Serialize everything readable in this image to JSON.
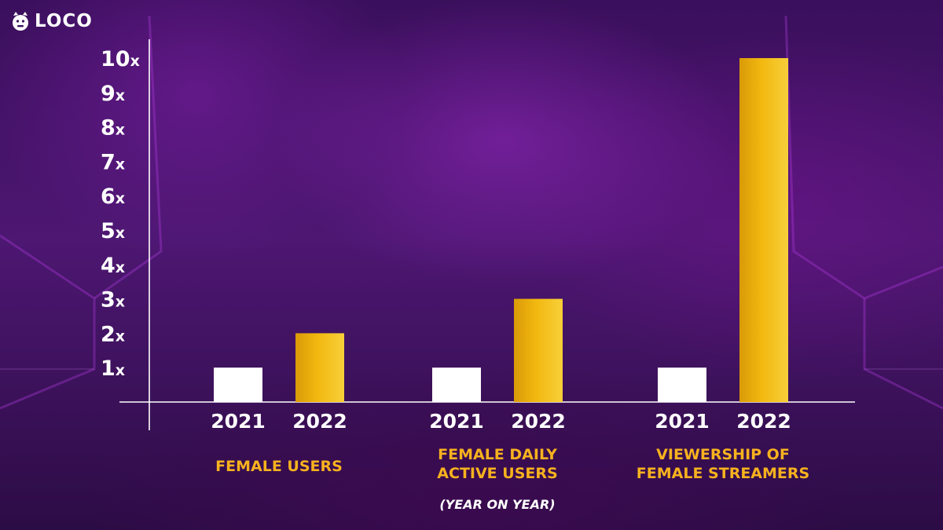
{
  "brand": {
    "name": "LOCO",
    "logo_icon": "loco-mascot-icon"
  },
  "colors": {
    "bar_2021": "#ffffff",
    "bar_2022": "#f2b80f",
    "label": "#f7b21e",
    "axis": "#ffffff"
  },
  "chart_data": {
    "type": "bar",
    "title": "",
    "xlabel": "",
    "ylabel": "",
    "ylim": [
      0,
      10
    ],
    "yticks": [
      {
        "value": 1,
        "num": "1",
        "suffix": "x"
      },
      {
        "value": 2,
        "num": "2",
        "suffix": "x"
      },
      {
        "value": 3,
        "num": "3",
        "suffix": "x"
      },
      {
        "value": 4,
        "num": "4",
        "suffix": "x"
      },
      {
        "value": 5,
        "num": "5",
        "suffix": "x"
      },
      {
        "value": 6,
        "num": "6",
        "suffix": "x"
      },
      {
        "value": 7,
        "num": "7",
        "suffix": "x"
      },
      {
        "value": 8,
        "num": "8",
        "suffix": "x"
      },
      {
        "value": 9,
        "num": "9",
        "suffix": "x"
      },
      {
        "value": 10,
        "num": "10",
        "suffix": "x"
      }
    ],
    "groups": [
      {
        "label": [
          "FEMALE USERS"
        ],
        "bars": [
          {
            "year": "2021",
            "value": 1
          },
          {
            "year": "2022",
            "value": 2
          }
        ]
      },
      {
        "label": [
          "FEMALE DAILY",
          "ACTIVE USERS"
        ],
        "bars": [
          {
            "year": "2021",
            "value": 1
          },
          {
            "year": "2022",
            "value": 3
          }
        ]
      },
      {
        "label": [
          "VIEWERSHIP OF",
          "FEMALE STREAMERS"
        ],
        "bars": [
          {
            "year": "2021",
            "value": 1
          },
          {
            "year": "2022",
            "value": 10
          }
        ]
      }
    ],
    "footnote": "(YEAR ON YEAR)",
    "grid": false,
    "legend": "none"
  }
}
